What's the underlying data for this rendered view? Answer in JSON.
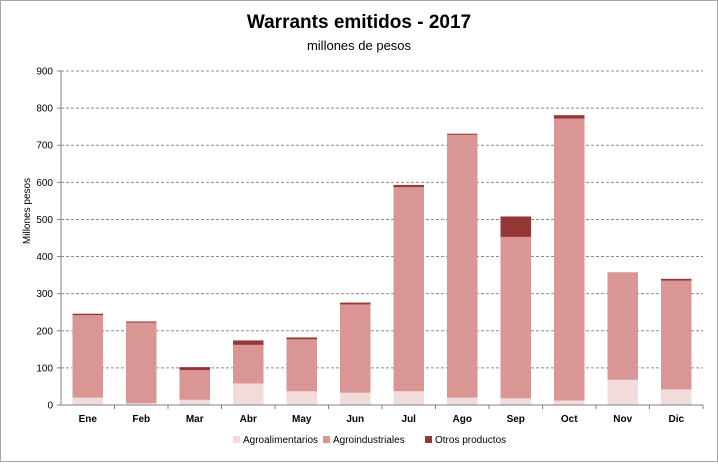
{
  "chart_data": {
    "type": "bar",
    "stacked": true,
    "title": "Warrants  emitidos  - 2017",
    "subtitle": "millones de pesos",
    "xlabel": "",
    "ylabel": "Millones pesos",
    "ylim": [
      0,
      900
    ],
    "yticks": [
      0,
      100,
      200,
      300,
      400,
      500,
      600,
      700,
      800,
      900
    ],
    "grid": true,
    "legend_position": "bottom",
    "categories": [
      "Ene",
      "Feb",
      "Mar",
      "Abr",
      "May",
      "Jun",
      "Jul",
      "Ago",
      "Sep",
      "Oct",
      "Nov",
      "Dic"
    ],
    "series": [
      {
        "name": "Agroalimentarios",
        "color": "#f2dcdb",
        "values": [
          20,
          5,
          14,
          58,
          37,
          33,
          37,
          20,
          18,
          12,
          68,
          42
        ]
      },
      {
        "name": "Agroindustriales",
        "color": "#d99694",
        "values": [
          222,
          217,
          80,
          104,
          140,
          238,
          550,
          708,
          435,
          760,
          288,
          293
        ]
      },
      {
        "name": "Otros productos",
        "color": "#953735",
        "values": [
          4,
          3,
          8,
          12,
          5,
          5,
          6,
          3,
          55,
          9,
          1,
          5
        ]
      }
    ]
  }
}
